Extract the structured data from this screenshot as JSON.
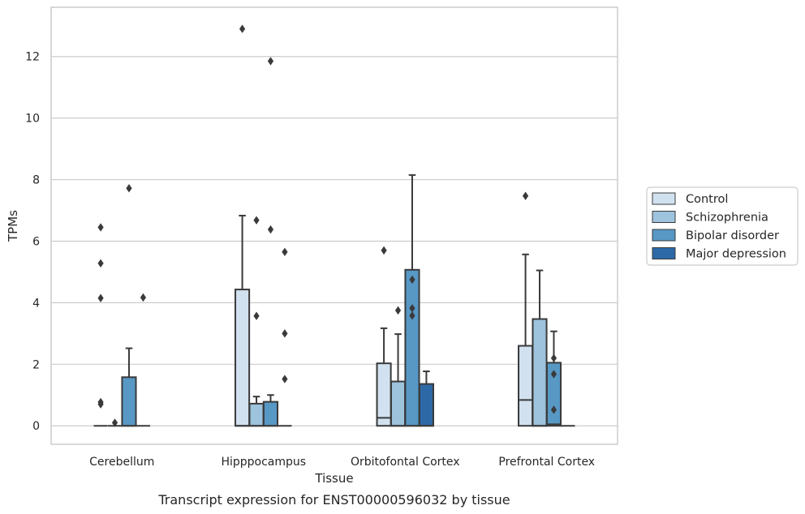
{
  "chart_data": {
    "type": "boxplot",
    "xlabel": "Tissue",
    "ylabel": "TPMs",
    "caption": "Transcript expression for ENST00000596032 by tissue",
    "ylim": [
      -0.6,
      13.6
    ],
    "yticks": [
      0,
      2,
      4,
      6,
      8,
      10,
      12
    ],
    "grid": true,
    "legend_position": "right",
    "categories": [
      "Cerebellum",
      "Hipppocampus",
      "Orbitofontal Cortex",
      "Prefrontal Cortex"
    ],
    "series": [
      {
        "name": "Control",
        "color": "#d1e1f0",
        "boxes": [
          {
            "q1": 0,
            "median": 0,
            "q3": 0,
            "whisker_low": 0,
            "whisker_high": 0,
            "outliers": [
              4.15,
              6.45,
              5.28,
              0.77,
              0.7
            ]
          },
          {
            "q1": 0,
            "median": 0,
            "q3": 4.43,
            "whisker_low": 0,
            "whisker_high": 6.83,
            "outliers": [
              12.9
            ]
          },
          {
            "q1": 0,
            "median": 0.26,
            "q3": 2.03,
            "whisker_low": 0,
            "whisker_high": 3.17,
            "outliers": [
              5.7
            ]
          },
          {
            "q1": 0,
            "median": 0.84,
            "q3": 2.6,
            "whisker_low": 0,
            "whisker_high": 5.57,
            "outliers": [
              7.47
            ]
          }
        ]
      },
      {
        "name": "Schizophrenia",
        "color": "#9dc3dd",
        "boxes": [
          {
            "q1": 0,
            "median": 0,
            "q3": 0,
            "whisker_low": 0,
            "whisker_high": 0,
            "outliers": [
              0.1
            ]
          },
          {
            "q1": 0,
            "median": 0,
            "q3": 0.72,
            "whisker_low": 0,
            "whisker_high": 0.95,
            "outliers": [
              6.68,
              3.57
            ]
          },
          {
            "q1": 0,
            "median": 0,
            "q3": 1.44,
            "whisker_low": 0,
            "whisker_high": 2.98,
            "outliers": [
              3.75
            ]
          },
          {
            "q1": 0,
            "median": 0,
            "q3": 3.47,
            "whisker_low": 0,
            "whisker_high": 5.05,
            "outliers": []
          }
        ]
      },
      {
        "name": "Bipolar disorder",
        "color": "#5798c5",
        "boxes": [
          {
            "q1": 0,
            "median": 0,
            "q3": 1.58,
            "whisker_low": 0,
            "whisker_high": 2.52,
            "outliers": [
              7.72
            ]
          },
          {
            "q1": 0,
            "median": 0,
            "q3": 0.78,
            "whisker_low": 0,
            "whisker_high": 1.0,
            "outliers": [
              11.85,
              6.38
            ]
          },
          {
            "q1": 0,
            "median": 0,
            "q3": 5.07,
            "whisker_low": 0,
            "whisker_high": 8.15,
            "outliers": [
              4.75,
              3.82,
              3.58
            ]
          },
          {
            "q1": 0,
            "median": 0.05,
            "q3": 2.05,
            "whisker_low": 0,
            "whisker_high": 3.07,
            "outliers": [
              2.2,
              1.68,
              0.52
            ]
          }
        ]
      },
      {
        "name": "Major depression",
        "color": "#2e69a7",
        "boxes": [
          {
            "q1": 0,
            "median": 0,
            "q3": 0,
            "whisker_low": 0,
            "whisker_high": 0,
            "outliers": [
              4.17
            ]
          },
          {
            "q1": 0,
            "median": 0,
            "q3": 0,
            "whisker_low": 0,
            "whisker_high": 0,
            "outliers": [
              5.65,
              3.0,
              1.52
            ]
          },
          {
            "q1": 0,
            "median": 0,
            "q3": 1.36,
            "whisker_low": 0,
            "whisker_high": 1.77,
            "outliers": []
          },
          {
            "q1": 0,
            "median": 0,
            "q3": 0,
            "whisker_low": 0,
            "whisker_high": 0,
            "outliers": []
          }
        ]
      }
    ]
  }
}
